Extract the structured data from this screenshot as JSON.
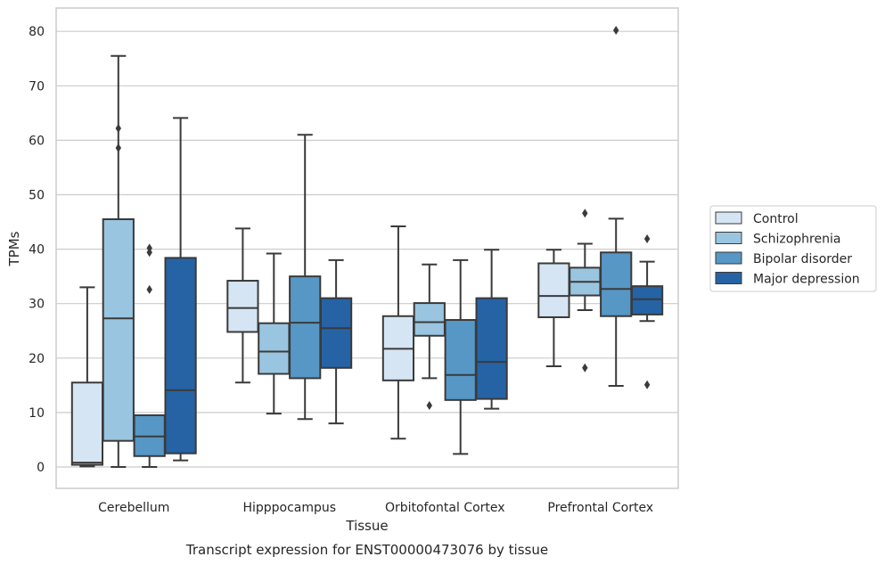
{
  "chart_data": {
    "type": "box",
    "xlabel": "Tissue",
    "ylabel": "TPMs",
    "caption": "Transcript expression for ENST00000473076 by tissue",
    "ylim": [
      -4,
      84
    ],
    "yticks": [
      0,
      10,
      20,
      30,
      40,
      50,
      60,
      70,
      80
    ],
    "grid": "horizontal",
    "legend_position": "right",
    "categories": [
      "Cerebellum",
      "Hipppocampus",
      "Orbitofontal Cortex",
      "Prefrontal Cortex"
    ],
    "series": [
      {
        "name": "Control",
        "color": "#d6e5f4",
        "boxes": [
          {
            "whislo": 0.1,
            "q1": 0.4,
            "med": 0.8,
            "q3": 15.5,
            "whishi": 33.0,
            "fliers": []
          },
          {
            "whislo": 15.5,
            "q1": 24.8,
            "med": 29.2,
            "q3": 34.2,
            "whishi": 43.8,
            "fliers": []
          },
          {
            "whislo": 5.2,
            "q1": 15.9,
            "med": 21.7,
            "q3": 27.7,
            "whishi": 44.2,
            "fliers": []
          },
          {
            "whislo": 18.5,
            "q1": 27.5,
            "med": 31.4,
            "q3": 37.4,
            "whishi": 39.9,
            "fliers": []
          }
        ]
      },
      {
        "name": "Schizophrenia",
        "color": "#9ac5e0",
        "boxes": [
          {
            "whislo": 0.0,
            "q1": 4.8,
            "med": 27.3,
            "q3": 45.5,
            "whishi": 75.5,
            "fliers": [
              58.6,
              62.2
            ]
          },
          {
            "whislo": 9.8,
            "q1": 17.1,
            "med": 21.2,
            "q3": 26.4,
            "whishi": 39.2,
            "fliers": []
          },
          {
            "whislo": 16.3,
            "q1": 24.1,
            "med": 26.6,
            "q3": 30.1,
            "whishi": 37.2,
            "fliers": [
              11.3
            ]
          },
          {
            "whislo": 28.8,
            "q1": 31.5,
            "med": 34.0,
            "q3": 36.6,
            "whishi": 41.0,
            "fliers": [
              46.6,
              18.2
            ]
          }
        ]
      },
      {
        "name": "Bipolar disorder",
        "color": "#5697c6",
        "boxes": [
          {
            "whislo": 0.0,
            "q1": 2.0,
            "med": 5.6,
            "q3": 9.5,
            "whishi": 9.5,
            "fliers": [
              32.6,
              39.4,
              40.2
            ]
          },
          {
            "whislo": 8.8,
            "q1": 16.3,
            "med": 26.5,
            "q3": 35.0,
            "whishi": 61.0,
            "fliers": []
          },
          {
            "whislo": 2.4,
            "q1": 12.3,
            "med": 16.9,
            "q3": 27.0,
            "whishi": 38.0,
            "fliers": []
          },
          {
            "whislo": 14.9,
            "q1": 27.7,
            "med": 32.7,
            "q3": 39.4,
            "whishi": 45.6,
            "fliers": [
              80.2
            ]
          }
        ]
      },
      {
        "name": "Major depression",
        "color": "#2563a5",
        "boxes": [
          {
            "whislo": 1.2,
            "q1": 2.5,
            "med": 14.1,
            "q3": 38.4,
            "whishi": 64.1,
            "fliers": []
          },
          {
            "whislo": 8.0,
            "q1": 18.2,
            "med": 25.5,
            "q3": 31.0,
            "whishi": 38.0,
            "fliers": []
          },
          {
            "whislo": 10.7,
            "q1": 12.5,
            "med": 19.3,
            "q3": 31.0,
            "whishi": 39.9,
            "fliers": []
          },
          {
            "whislo": 26.8,
            "q1": 28.0,
            "med": 30.8,
            "q3": 33.2,
            "whishi": 37.7,
            "fliers": [
              41.9,
              15.1
            ]
          }
        ]
      }
    ]
  }
}
